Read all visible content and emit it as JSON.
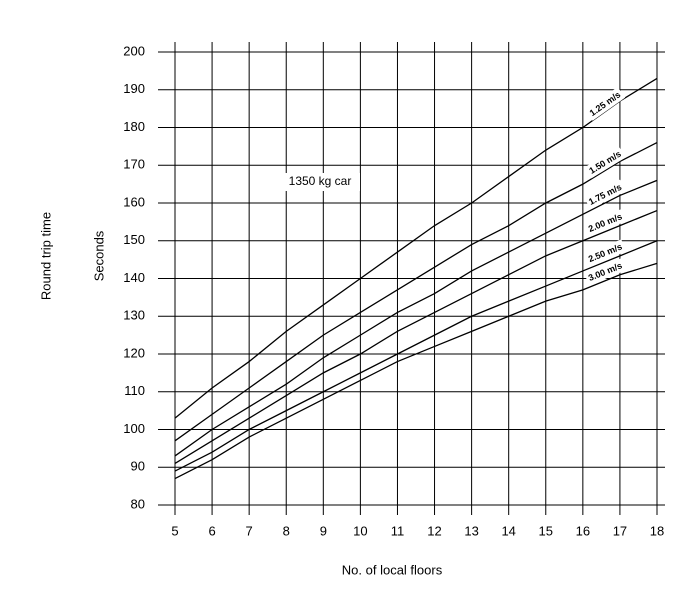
{
  "chart_data": {
    "type": "line",
    "x_label": "No. of local floors",
    "y_label": "Seconds",
    "y_title": "Round trip time",
    "annotation": "1350 kg car",
    "x": [
      5,
      6,
      7,
      8,
      9,
      10,
      11,
      12,
      13,
      14,
      15,
      16,
      17,
      18
    ],
    "series": [
      {
        "name": "1.25 m/s",
        "color": "#000000",
        "values": [
          103,
          111,
          118,
          126,
          133,
          140,
          147,
          154,
          160,
          167,
          174,
          180,
          187,
          193
        ]
      },
      {
        "name": "1.50 m/s",
        "color": "#000000",
        "values": [
          97,
          104,
          111,
          118,
          125,
          131,
          137,
          143,
          149,
          154,
          160,
          165,
          171,
          176
        ]
      },
      {
        "name": "1.75 m/s",
        "color": "#000000",
        "values": [
          93,
          100,
          106,
          112,
          119,
          125,
          131,
          136,
          142,
          147,
          152,
          157,
          162,
          166
        ]
      },
      {
        "name": "2.00 m/s",
        "color": "#000000",
        "values": [
          91,
          97,
          103,
          109,
          115,
          120,
          126,
          131,
          136,
          141,
          146,
          150,
          154,
          158
        ]
      },
      {
        "name": "2.50 m/s",
        "color": "#000000",
        "values": [
          89,
          94,
          100,
          105,
          110,
          115,
          120,
          125,
          130,
          134,
          138,
          142,
          146,
          150
        ]
      },
      {
        "name": "3.00 m/s",
        "color": "#000000",
        "values": [
          87,
          92,
          98,
          103,
          108,
          113,
          118,
          122,
          126,
          130,
          134,
          137,
          141,
          144
        ]
      }
    ],
    "xlim": [
      5,
      18
    ],
    "ylim": [
      80,
      200
    ],
    "xticks": [
      5,
      6,
      7,
      8,
      9,
      10,
      11,
      12,
      13,
      14,
      15,
      16,
      17,
      18
    ],
    "yticks": [
      80,
      90,
      100,
      110,
      120,
      130,
      140,
      150,
      160,
      170,
      180,
      190,
      200
    ],
    "grid": true
  }
}
